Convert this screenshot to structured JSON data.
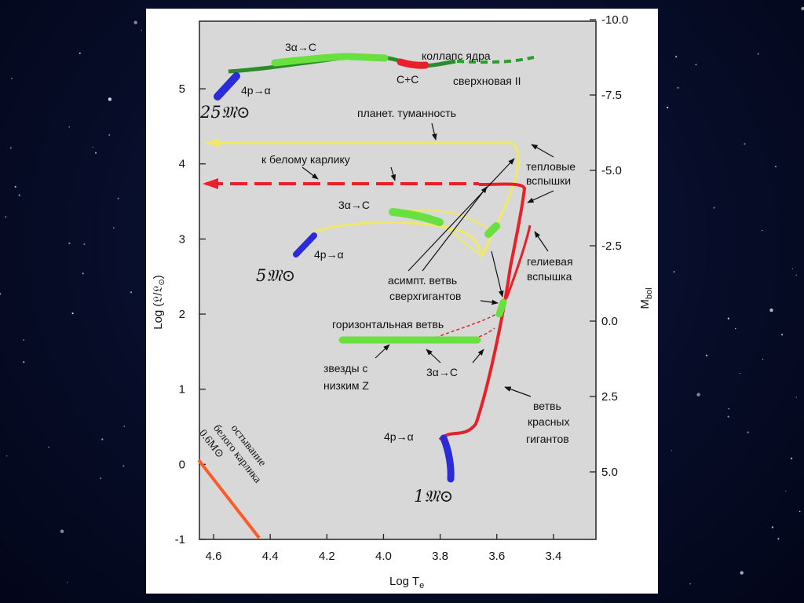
{
  "chart_data": {
    "type": "line",
    "title": "",
    "xlabel": "Log T",
    "xlabel_sub": "e",
    "ylabel": "Log (𝔏/𝔏",
    "ylabel_sub": "⊙",
    "ylabel_end": ")",
    "y2label": "M",
    "y2label_sub": "bol",
    "xlim": [
      4.65,
      3.25
    ],
    "ylim": [
      -1,
      5.9
    ],
    "x_ticks": [
      "4.6",
      "4.4",
      "4.2",
      "4.0",
      "3.8",
      "3.6",
      "3.4"
    ],
    "y_ticks": [
      "-1",
      "0",
      "1",
      "2",
      "3",
      "4",
      "5"
    ],
    "y2_ticks": [
      "-10.0",
      "-7.5",
      "-5.0",
      "-2.5",
      "0.0",
      "2.5",
      "5.0"
    ],
    "series": [
      {
        "name": "",
        "color": "#2a8c2a",
        "x": [
          4.57,
          4.47,
          4.37,
          4.25,
          4.13,
          4.0,
          3.9,
          3.8,
          3.72,
          3.65
        ],
        "y": [
          5.27,
          5.25,
          5.31,
          5.37,
          5.42,
          5.43,
          5.37,
          5.31,
          5.21,
          5.24
        ]
      },
      {
        "name": "",
        "color": "#2b2bd8",
        "x": [
          4.6,
          4.57
        ],
        "y": [
          4.93,
          5.17
        ]
      },
      {
        "name": "",
        "color": "#f0e868",
        "x": [
          4.28,
          4.1,
          3.95,
          3.75,
          3.63,
          3.57,
          3.565,
          3.57,
          3.6,
          4.65
        ],
        "y": [
          3.02,
          3.15,
          3.13,
          3.08,
          2.9,
          3.15,
          3.5,
          3.9,
          4.3,
          4.3
        ]
      },
      {
        "name": "",
        "color": "#2b2bd8",
        "x": [
          4.33,
          4.29
        ],
        "y": [
          2.85,
          3.06
        ]
      },
      {
        "name": "",
        "color": "#e8202a",
        "x": [
          3.74,
          3.69,
          3.64,
          3.61,
          3.58,
          3.555,
          3.53,
          3.54,
          3.6,
          4.65
        ],
        "y": [
          0.45,
          0.48,
          0.75,
          1.6,
          2.3,
          2.95,
          3.55,
          3.68,
          3.75,
          3.75
        ]
      },
      {
        "name": "",
        "color": "#2b2bd8",
        "x": [
          3.79,
          3.755
        ],
        "y": [
          0.33,
          -0.2
        ]
      }
    ],
    "annotations": [
      "3α→C",
      "коллапс ядра",
      "C+C",
      "сверхновая II",
      "4p→α",
      "25𝔐⊙",
      "планет. туманность",
      "к белому карлику",
      "тепловые",
      "вспышки",
      "3α→C",
      "4p→α",
      "5𝔐⊙",
      "гелиевая",
      "вспышка",
      "асимпт. ветвь",
      "сверхгигантов",
      "горизонтальная ветвь",
      "звезды с",
      "низким Z",
      "3α→C",
      "ветвь",
      "красных",
      "гигантов",
      "4p→α",
      "1𝔐⊙",
      "остывание",
      "белого карлика",
      "0.6M⊙"
    ]
  }
}
